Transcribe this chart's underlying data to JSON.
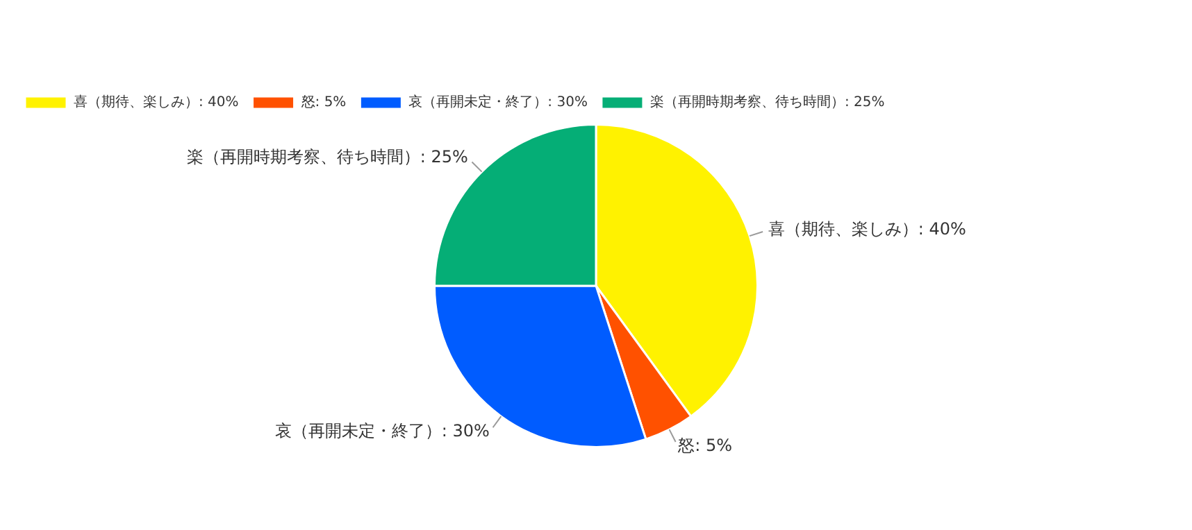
{
  "chart_data": {
    "type": "pie",
    "categories": [
      "喜（期待、楽しみ）: 40%",
      "怒: 5%",
      "哀（再開未定・終了）: 30%",
      "楽（再開時期考察、待ち時間）: 25%"
    ],
    "values": [
      40,
      5,
      30,
      25
    ],
    "colors": [
      "#fff200",
      "#ff5100",
      "#005cff",
      "#05ae76"
    ],
    "legend": "top left"
  }
}
